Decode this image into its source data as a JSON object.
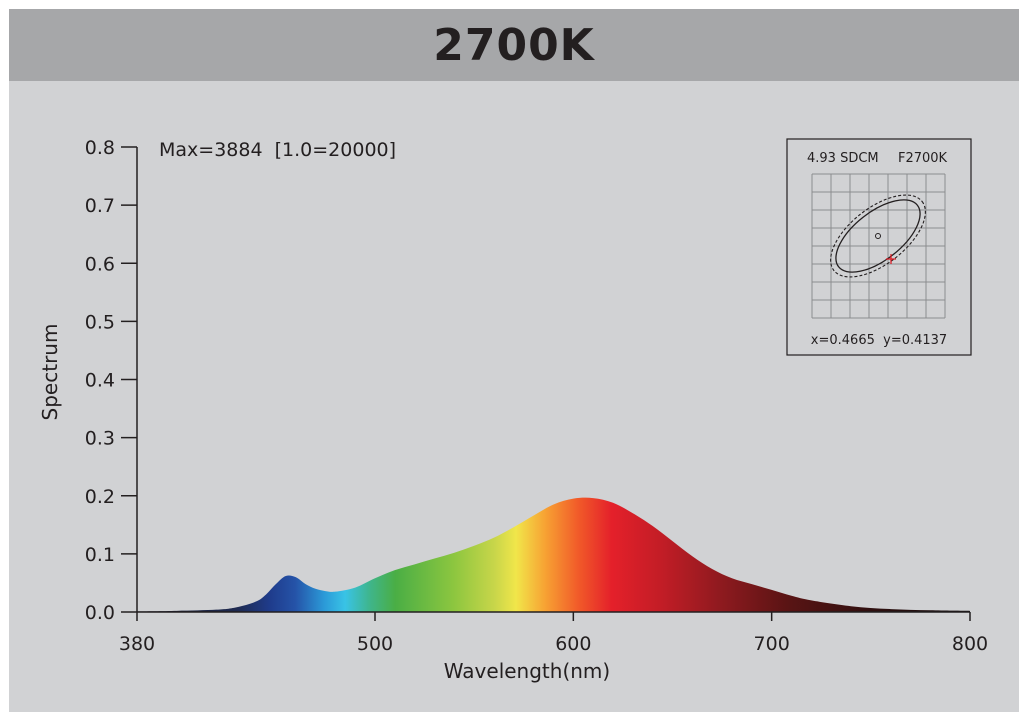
{
  "title": "2700K",
  "annotation": "Max=3884  [1.0=20000]",
  "chart_data": {
    "type": "area",
    "xlabel": "Wavelength(nm)",
    "ylabel": "Spectrum",
    "xlim": [
      380,
      800
    ],
    "ylim": [
      0,
      0.8
    ],
    "x_ticks": [
      380,
      500,
      600,
      700,
      800
    ],
    "y_ticks": [
      0.0,
      0.1,
      0.2,
      0.3,
      0.4,
      0.5,
      0.6,
      0.7,
      0.8
    ],
    "x_tick_labels": [
      "380",
      "500",
      "600",
      "700",
      "800"
    ],
    "y_tick_labels": [
      "0.0",
      "0.1",
      "0.2",
      "0.3",
      "0.4",
      "0.5",
      "0.6",
      "0.7",
      "0.8"
    ],
    "fill": "wavelength-spectrum-gradient",
    "x": [
      380,
      400,
      420,
      430,
      440,
      445,
      450,
      455,
      460,
      465,
      470,
      475,
      480,
      490,
      500,
      510,
      520,
      530,
      540,
      550,
      560,
      570,
      580,
      590,
      600,
      610,
      620,
      630,
      640,
      650,
      660,
      670,
      680,
      690,
      700,
      710,
      720,
      740,
      760,
      780,
      800
    ],
    "y": [
      0.001,
      0.002,
      0.004,
      0.008,
      0.018,
      0.03,
      0.048,
      0.062,
      0.06,
      0.048,
      0.04,
      0.036,
      0.035,
      0.042,
      0.058,
      0.072,
      0.082,
      0.092,
      0.102,
      0.114,
      0.128,
      0.146,
      0.166,
      0.185,
      0.195,
      0.196,
      0.188,
      0.17,
      0.148,
      0.122,
      0.096,
      0.074,
      0.058,
      0.048,
      0.038,
      0.028,
      0.02,
      0.01,
      0.005,
      0.003,
      0.002
    ],
    "grid": false,
    "legend": "none"
  },
  "inset": {
    "label": "4.93 SDCM",
    "standard": "F2700K",
    "coords": "x=0.4665  y=0.4137",
    "point_color": "#e0141e"
  },
  "colors": {
    "background": "#d1d2d4",
    "title_bar": "#a6a7a9",
    "text": "#231f20"
  }
}
